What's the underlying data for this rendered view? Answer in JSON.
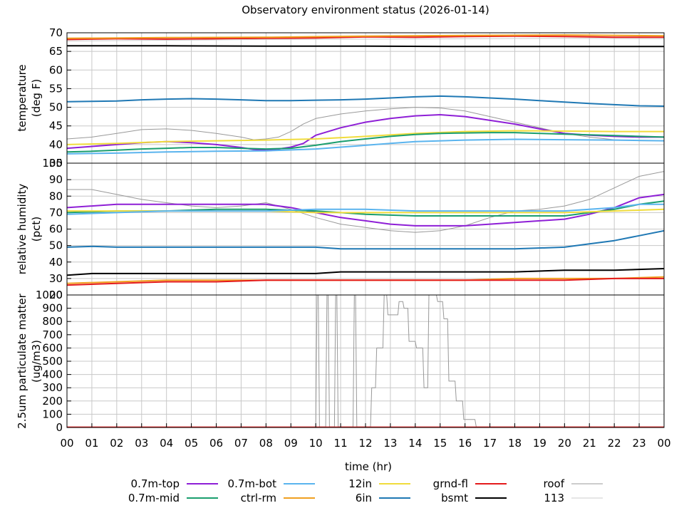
{
  "chart_data": {
    "title": "Observatory environment status (2026-01-14)",
    "xlabel": "time (hr)",
    "x_ticks": [
      "00",
      "01",
      "02",
      "03",
      "04",
      "05",
      "06",
      "07",
      "08",
      "09",
      "10",
      "11",
      "12",
      "13",
      "14",
      "15",
      "16",
      "17",
      "18",
      "19",
      "20",
      "21",
      "22",
      "23",
      "00"
    ],
    "xlim": [
      0,
      24
    ],
    "panels": [
      {
        "id": "temperature",
        "type": "line",
        "ylabel": [
          "temperature",
          "(deg F)"
        ],
        "ylim": [
          35,
          70
        ],
        "y_ticks": [
          35,
          40,
          45,
          50,
          55,
          60,
          65,
          70
        ],
        "grid": true,
        "series": [
          {
            "name": "grndfl",
            "color": "#e41a1c",
            "x": [
              0,
              2,
              4,
              6,
              8,
              10,
              12,
              14,
              16,
              18,
              20,
              22,
              24
            ],
            "y": [
              68.2,
              68.4,
              68.3,
              68.4,
              68.5,
              68.6,
              68.9,
              68.8,
              69.0,
              69.1,
              69.0,
              68.8,
              68.8
            ]
          },
          {
            "name": "ctrlrm",
            "color": "#f0a020",
            "x": [
              0,
              4,
              8,
              12,
              16,
              20,
              24
            ],
            "y": [
              68.5,
              68.7,
              68.8,
              69.1,
              69.3,
              69.4,
              69.2
            ]
          },
          {
            "name": "113",
            "color": "#cccccc",
            "x": [
              0,
              4,
              8,
              12,
              16,
              20,
              24
            ],
            "y": [
              67.8,
              68.0,
              68.2,
              68.3,
              68.4,
              68.5,
              68.4
            ]
          },
          {
            "name": "bsmt",
            "color": "#000000",
            "x": [
              0,
              4,
              8,
              12,
              16,
              20,
              24
            ],
            "y": [
              66.5,
              66.5,
              66.4,
              66.4,
              66.3,
              66.3,
              66.3
            ]
          },
          {
            "name": "6in",
            "color": "#1f78b4",
            "x": [
              0,
              1,
              2,
              3,
              4,
              5,
              6,
              7,
              8,
              9,
              10,
              11,
              12,
              13,
              14,
              15,
              16,
              17,
              18,
              19,
              20,
              21,
              22,
              23,
              24
            ],
            "y": [
              51.5,
              51.6,
              51.7,
              52.0,
              52.2,
              52.3,
              52.2,
              52.0,
              51.8,
              51.8,
              51.9,
              52.0,
              52.2,
              52.5,
              52.8,
              53.0,
              52.8,
              52.5,
              52.2,
              51.8,
              51.4,
              51.0,
              50.7,
              50.4,
              50.3
            ]
          },
          {
            "name": "roof",
            "color": "#999999",
            "x": [
              0,
              1,
              2,
              3,
              4,
              5,
              6,
              7,
              7.5,
              8,
              8.5,
              9,
              9.5,
              10,
              11,
              12,
              13,
              14,
              15,
              16,
              17,
              18,
              19,
              20,
              21,
              22,
              23,
              24
            ],
            "y": [
              41.5,
              42.0,
              43.0,
              44.0,
              44.2,
              43.8,
              43.0,
              42.0,
              41.3,
              41.5,
              42.0,
              43.5,
              45.5,
              47.0,
              48.2,
              49.0,
              49.6,
              50.0,
              49.8,
              49.0,
              47.5,
              46.0,
              44.5,
              43.0,
              42.0,
              41.3,
              41.0,
              41.0
            ]
          },
          {
            "name": "0.7m-top",
            "color": "#8e1fd6",
            "x": [
              0,
              1,
              2,
              3,
              4,
              5,
              6,
              7,
              7.5,
              8,
              8.5,
              9,
              9.5,
              10,
              11,
              12,
              13,
              14,
              15,
              16,
              17,
              18,
              19,
              20,
              21,
              22,
              23,
              24
            ],
            "y": [
              39.0,
              39.5,
              40.0,
              40.5,
              40.8,
              40.5,
              40.0,
              39.2,
              38.7,
              38.5,
              38.8,
              39.3,
              40.3,
              42.5,
              44.5,
              46.0,
              47.0,
              47.7,
              48.0,
              47.5,
              46.5,
              45.5,
              44.2,
              43.0,
              42.5,
              42.2,
              42.0,
              42.0
            ]
          },
          {
            "name": "12in",
            "color": "#f0dc3c",
            "x": [
              0,
              2,
              4,
              6,
              8,
              10,
              12,
              14,
              16,
              18,
              20,
              22,
              24
            ],
            "y": [
              40.0,
              40.3,
              40.8,
              41.0,
              41.2,
              41.5,
              42.2,
              43.0,
              43.5,
              43.7,
              43.6,
              43.5,
              43.5
            ]
          },
          {
            "name": "0.7m-mid",
            "color": "#1a9e6e",
            "x": [
              0,
              1,
              2,
              3,
              4,
              5,
              6,
              7,
              8,
              9,
              10,
              11,
              12,
              13,
              14,
              15,
              16,
              17,
              18,
              19,
              20,
              21,
              22,
              23,
              24
            ],
            "y": [
              38.0,
              38.2,
              38.5,
              38.8,
              39.0,
              39.2,
              39.2,
              39.0,
              38.8,
              39.0,
              39.8,
              40.8,
              41.5,
              42.2,
              42.7,
              43.0,
              43.1,
              43.2,
              43.2,
              43.0,
              42.8,
              42.6,
              42.4,
              42.2,
              42.0
            ]
          },
          {
            "name": "0.7m-bot",
            "color": "#5ab4ee",
            "x": [
              0,
              2,
              4,
              6,
              8,
              10,
              12,
              13,
              14,
              16,
              18,
              20,
              22,
              24
            ],
            "y": [
              37.5,
              37.7,
              38.0,
              38.2,
              38.3,
              38.8,
              39.8,
              40.3,
              40.8,
              41.2,
              41.4,
              41.3,
              41.2,
              41.0
            ]
          }
        ]
      },
      {
        "id": "humidity",
        "type": "line",
        "ylabel": [
          "relative humidity",
          "(pct)"
        ],
        "ylim": [
          20,
          100
        ],
        "y_ticks": [
          20,
          30,
          40,
          50,
          60,
          70,
          80,
          90,
          100
        ],
        "grid": true,
        "series": [
          {
            "name": "roof",
            "color": "#999999",
            "x": [
              0,
              1,
              2,
              3,
              4,
              5,
              6,
              7,
              8,
              9,
              10,
              11,
              12,
              13,
              14,
              15,
              16,
              17,
              18,
              19,
              20,
              21,
              22,
              23,
              24
            ],
            "y": [
              84,
              84,
              81,
              78,
              76,
              74,
              73,
              74,
              76,
              72,
              67,
              63,
              61,
              59,
              58,
              59,
              62,
              67,
              71,
              72,
              74,
              78,
              85,
              92,
              95
            ]
          },
          {
            "name": "0.7m-top",
            "color": "#8e1fd6",
            "x": [
              0,
              1,
              2,
              3,
              4,
              5,
              6,
              7,
              8,
              9,
              10,
              11,
              12,
              13,
              14,
              15,
              16,
              17,
              18,
              19,
              20,
              21,
              22,
              23,
              24
            ],
            "y": [
              73,
              74,
              75,
              75,
              75,
              75,
              75,
              75,
              75,
              73,
              70,
              67,
              65,
              63,
              62,
              62,
              62,
              63,
              64,
              65,
              66,
              69,
              73,
              79,
              81
            ]
          },
          {
            "name": "0.7m-mid",
            "color": "#1a9e6e",
            "x": [
              0,
              2,
              4,
              6,
              8,
              10,
              11,
              12,
              14,
              16,
              18,
              20,
              21,
              22,
              23,
              24
            ],
            "y": [
              70,
              71,
              71,
              72,
              72,
              71,
              70,
              69,
              68,
              68,
              68,
              68,
              70,
              72,
              75,
              77
            ]
          },
          {
            "name": "12in",
            "color": "#f0dc3c",
            "x": [
              0,
              2,
              4,
              6,
              8,
              10,
              12,
              14,
              16,
              18,
              20,
              22,
              24
            ],
            "y": [
              71,
              71,
              71,
              71,
              71,
              70,
              70,
              70,
              70,
              70,
              70,
              71,
              72
            ]
          },
          {
            "name": "0.7m-bot",
            "color": "#5ab4ee",
            "x": [
              0,
              2,
              4,
              6,
              8,
              10,
              12,
              14,
              16,
              18,
              20,
              21,
              22,
              23,
              24
            ],
            "y": [
              69,
              70,
              71,
              71,
              71,
              72,
              72,
              71,
              71,
              71,
              71,
              72,
              73,
              75,
              75
            ]
          },
          {
            "name": "6in",
            "color": "#1f78b4",
            "x": [
              0,
              1,
              2,
              4,
              6,
              8,
              10,
              11,
              12,
              14,
              16,
              18,
              20,
              21,
              22,
              23,
              24
            ],
            "y": [
              49,
              49.5,
              49,
              49,
              49,
              49,
              49,
              48,
              48,
              48,
              48,
              48,
              49,
              51,
              53,
              56,
              59
            ]
          },
          {
            "name": "bsmt",
            "color": "#000000",
            "x": [
              0,
              1,
              2,
              4,
              6,
              8,
              10,
              11,
              12,
              14,
              16,
              18,
              20,
              22,
              24
            ],
            "y": [
              32,
              33,
              33,
              33,
              33,
              33,
              33,
              34,
              34,
              34,
              34,
              34,
              35,
              35,
              36
            ]
          },
          {
            "name": "ctrlrm",
            "color": "#f0a020",
            "x": [
              0,
              2,
              4,
              6,
              8,
              10,
              12,
              14,
              16,
              18,
              20,
              22,
              24
            ],
            "y": [
              27,
              28,
              29,
              29,
              29,
              29,
              29,
              29,
              29,
              30,
              30,
              30,
              31
            ]
          },
          {
            "name": "grndfl",
            "color": "#e41a1c",
            "x": [
              0,
              2,
              4,
              6,
              8,
              10,
              12,
              14,
              16,
              18,
              20,
              22,
              24
            ],
            "y": [
              26,
              27,
              28,
              28,
              29,
              29,
              29,
              29,
              29,
              29,
              29,
              30,
              30
            ]
          }
        ]
      },
      {
        "id": "pm25",
        "type": "line",
        "ylabel": [
          "2.5um particulate matter",
          "(ug/m3)"
        ],
        "ylim": [
          0,
          1000
        ],
        "y_ticks": [
          0,
          100,
          200,
          300,
          400,
          500,
          600,
          700,
          800,
          900,
          1000
        ],
        "grid": true,
        "series": [
          {
            "name": "roof",
            "color": "#999999",
            "x": [
              10.0,
              10.05,
              10.1,
              10.15,
              10.4,
              10.45,
              10.5,
              10.55,
              10.75,
              10.8,
              10.85,
              10.9,
              11.5,
              11.55,
              11.6,
              11.65,
              12.2,
              12.25,
              12.4,
              12.45,
              12.7,
              12.75,
              12.85,
              12.9,
              13.3,
              13.35,
              13.5,
              13.55,
              13.7,
              13.75,
              14.0,
              14.05,
              14.3,
              14.35,
              14.5,
              14.55,
              14.85,
              14.9,
              15.1,
              15.15,
              15.3,
              15.35,
              15.6,
              15.65,
              15.9,
              15.95,
              16.4,
              16.45,
              24
            ],
            "y": [
              5,
              1000,
              1000,
              5,
              5,
              1000,
              1000,
              5,
              5,
              1000,
              1000,
              5,
              5,
              1000,
              1000,
              5,
              5,
              300,
              300,
              600,
              600,
              1000,
              1000,
              850,
              850,
              950,
              950,
              900,
              900,
              650,
              650,
              600,
              600,
              300,
              300,
              1000,
              1000,
              950,
              950,
              820,
              820,
              350,
              350,
              200,
              200,
              60,
              60,
              5,
              5
            ]
          },
          {
            "name": "grndfl",
            "color": "#e41a1c",
            "x": [
              0,
              24
            ],
            "y": [
              2,
              2
            ]
          }
        ]
      }
    ],
    "legend": {
      "position": "bottom",
      "entries": [
        {
          "label": "0.7m-top",
          "color": "#8e1fd6"
        },
        {
          "label": "0.7m-mid",
          "color": "#1a9e6e"
        },
        {
          "label": "0.7m-bot",
          "color": "#5ab4ee"
        },
        {
          "label": "ctrl-rm",
          "color": "#f0a020"
        },
        {
          "label": "12in",
          "color": "#f0dc3c"
        },
        {
          "label": "6in",
          "color": "#1f78b4"
        },
        {
          "label": "grnd-fl",
          "color": "#e41a1c"
        },
        {
          "label": "bsmt",
          "color": "#000000"
        },
        {
          "label": "roof",
          "color": "#999999"
        },
        {
          "label": "113",
          "color": "#cccccc"
        }
      ]
    }
  }
}
